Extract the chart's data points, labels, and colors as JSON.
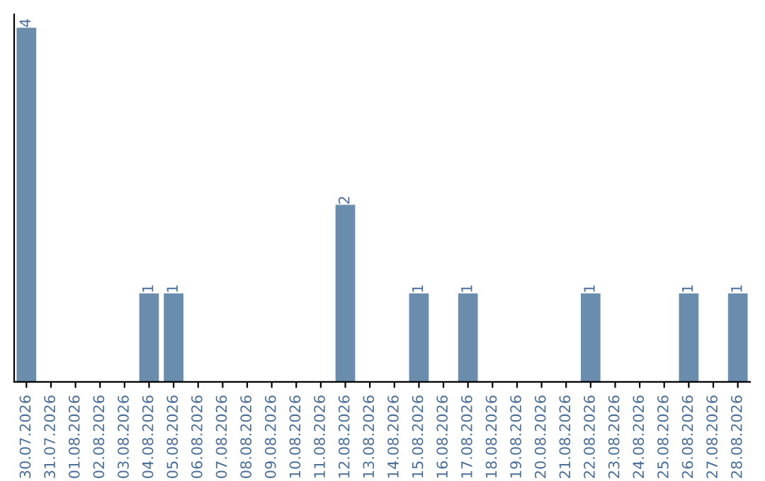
{
  "chart_data": {
    "type": "bar",
    "categories": [
      "30.07.2026",
      "31.07.2026",
      "01.08.2026",
      "02.08.2026",
      "03.08.2026",
      "04.08.2026",
      "05.08.2026",
      "06.08.2026",
      "07.08.2026",
      "08.08.2026",
      "09.08.2026",
      "10.08.2026",
      "11.08.2026",
      "12.08.2026",
      "13.08.2026",
      "14.08.2026",
      "15.08.2026",
      "16.08.2026",
      "17.08.2026",
      "18.08.2026",
      "19.08.2026",
      "20.08.2026",
      "21.08.2026",
      "22.08.2026",
      "23.08.2026",
      "24.08.2026",
      "25.08.2026",
      "26.08.2026",
      "27.08.2026",
      "28.08.2026"
    ],
    "values": [
      4,
      0,
      0,
      0,
      0,
      1,
      1,
      0,
      0,
      0,
      0,
      0,
      0,
      2,
      0,
      0,
      1,
      0,
      1,
      0,
      0,
      0,
      0,
      1,
      0,
      0,
      0,
      1,
      0,
      1
    ],
    "value_labels": [
      "4",
      null,
      null,
      null,
      null,
      "1",
      "1",
      null,
      null,
      null,
      null,
      null,
      null,
      "2",
      null,
      null,
      "1",
      null,
      "1",
      null,
      null,
      null,
      null,
      "1",
      null,
      null,
      null,
      "1",
      null,
      "1"
    ],
    "color": "#6a8cad",
    "ylim": [
      0,
      4.15
    ],
    "tick_labels": "x",
    "grid": false,
    "legend": false
  }
}
